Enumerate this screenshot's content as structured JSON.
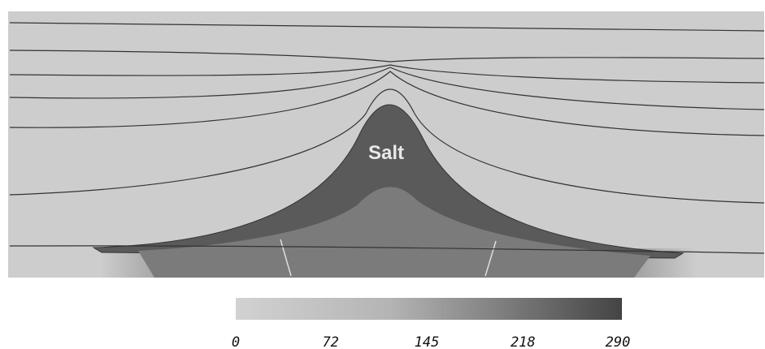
{
  "label": "Salt",
  "colorbar": {
    "range": [
      0,
      290
    ],
    "ticks": [
      0,
      72,
      145,
      218,
      290
    ]
  }
}
